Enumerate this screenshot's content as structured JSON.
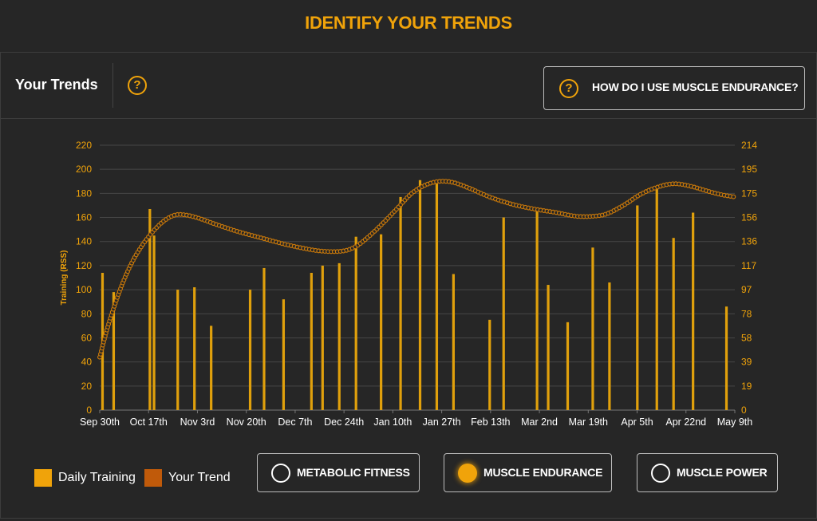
{
  "page": {
    "title": "IDENTIFY YOUR TRENDS"
  },
  "header": {
    "title": "Your Trends",
    "help_icon": "question-circle-icon",
    "howto_label": "HOW DO I USE MUSCLE ENDURANCE?"
  },
  "colors": {
    "accent": "#f0a30a",
    "bars": "#e0a00c",
    "trend": "#c8780a",
    "trend_legend": "#c05a0a",
    "background": "#262626",
    "grid": "#4a4a4a"
  },
  "legend": [
    {
      "label": "Daily Training",
      "color": "#f0a30a"
    },
    {
      "label": "Your Trend",
      "color": "#c05a0a"
    }
  ],
  "toggles": [
    {
      "label": "METABOLIC FITNESS",
      "selected": false
    },
    {
      "label": "MUSCLE ENDURANCE",
      "selected": true
    },
    {
      "label": "MUSCLE POWER",
      "selected": false
    }
  ],
  "chart_data": {
    "type": "bar",
    "ylabel": "Training (RSS)",
    "ylim": [
      0,
      220
    ],
    "y_ticks": [
      "0",
      "20",
      "40",
      "60",
      "80",
      "100",
      "120",
      "140",
      "160",
      "180",
      "200",
      "220"
    ],
    "y2_ticks": [
      "0",
      "19",
      "39",
      "58",
      "78",
      "97",
      "117",
      "136",
      "156",
      "175",
      "195",
      "214"
    ],
    "x_ticks": [
      "Sep 30th",
      "Oct 17th",
      "Nov 3rd",
      "Nov 20th",
      "Dec 7th",
      "Dec 24th",
      "Jan 10th",
      "Jan 27th",
      "Feb 13th",
      "Mar 2nd",
      "Mar 19th",
      "Apr 5th",
      "Apr 22nd",
      "May 9th"
    ],
    "grid": true,
    "series": [
      {
        "name": "Daily Training",
        "type": "bar",
        "points": [
          {
            "x": 1,
            "y": 114
          },
          {
            "x": 5,
            "y": 98
          },
          {
            "x": 18,
            "y": 167
          },
          {
            "x": 19.5,
            "y": 145
          },
          {
            "x": 28,
            "y": 100
          },
          {
            "x": 34,
            "y": 102
          },
          {
            "x": 40,
            "y": 70
          },
          {
            "x": 54,
            "y": 100
          },
          {
            "x": 59,
            "y": 118
          },
          {
            "x": 66,
            "y": 92
          },
          {
            "x": 76,
            "y": 114
          },
          {
            "x": 80,
            "y": 120
          },
          {
            "x": 86,
            "y": 122
          },
          {
            "x": 92,
            "y": 144
          },
          {
            "x": 101,
            "y": 146
          },
          {
            "x": 108,
            "y": 177
          },
          {
            "x": 115,
            "y": 191
          },
          {
            "x": 121,
            "y": 190
          },
          {
            "x": 127,
            "y": 113
          },
          {
            "x": 140,
            "y": 75
          },
          {
            "x": 145,
            "y": 160
          },
          {
            "x": 157,
            "y": 167
          },
          {
            "x": 161,
            "y": 104
          },
          {
            "x": 168,
            "y": 73
          },
          {
            "x": 177,
            "y": 135
          },
          {
            "x": 183,
            "y": 106
          },
          {
            "x": 193,
            "y": 170
          },
          {
            "x": 200,
            "y": 186
          },
          {
            "x": 206,
            "y": 143
          },
          {
            "x": 213,
            "y": 164
          },
          {
            "x": 225,
            "y": 86
          }
        ]
      },
      {
        "name": "Your Trend",
        "type": "line",
        "points": [
          {
            "x": 0,
            "y": 44
          },
          {
            "x": 3,
            "y": 70
          },
          {
            "x": 7,
            "y": 98
          },
          {
            "x": 11,
            "y": 120
          },
          {
            "x": 15,
            "y": 136
          },
          {
            "x": 19,
            "y": 148
          },
          {
            "x": 23,
            "y": 157
          },
          {
            "x": 27,
            "y": 162
          },
          {
            "x": 31,
            "y": 162
          },
          {
            "x": 36,
            "y": 159
          },
          {
            "x": 42,
            "y": 154
          },
          {
            "x": 50,
            "y": 148
          },
          {
            "x": 58,
            "y": 143
          },
          {
            "x": 66,
            "y": 138
          },
          {
            "x": 74,
            "y": 134
          },
          {
            "x": 80,
            "y": 132
          },
          {
            "x": 87,
            "y": 132
          },
          {
            "x": 92,
            "y": 136
          },
          {
            "x": 97,
            "y": 145
          },
          {
            "x": 102,
            "y": 156
          },
          {
            "x": 107,
            "y": 168
          },
          {
            "x": 112,
            "y": 180
          },
          {
            "x": 117,
            "y": 187
          },
          {
            "x": 122,
            "y": 190
          },
          {
            "x": 127,
            "y": 189
          },
          {
            "x": 133,
            "y": 184
          },
          {
            "x": 140,
            "y": 177
          },
          {
            "x": 148,
            "y": 171
          },
          {
            "x": 156,
            "y": 167
          },
          {
            "x": 164,
            "y": 164
          },
          {
            "x": 171,
            "y": 161
          },
          {
            "x": 177,
            "y": 161
          },
          {
            "x": 182,
            "y": 163
          },
          {
            "x": 188,
            "y": 170
          },
          {
            "x": 194,
            "y": 179
          },
          {
            "x": 200,
            "y": 185
          },
          {
            "x": 206,
            "y": 188
          },
          {
            "x": 212,
            "y": 186
          },
          {
            "x": 218,
            "y": 182
          },
          {
            "x": 223,
            "y": 179
          },
          {
            "x": 228,
            "y": 177
          }
        ]
      }
    ]
  }
}
